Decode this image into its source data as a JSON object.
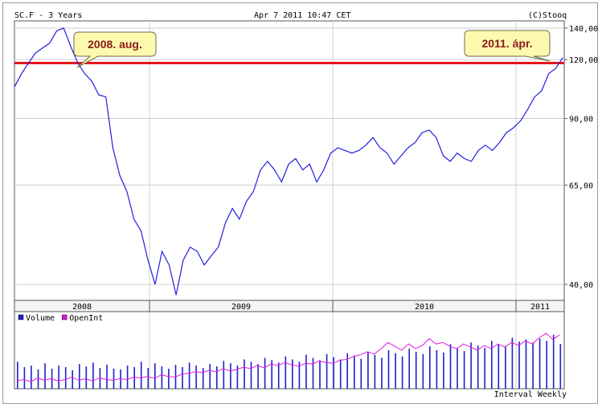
{
  "header": {
    "symbol": "SC.F - 3 Years",
    "timestamp": "Apr 7 2011 10:47 CET",
    "copyright": "(C)Stooq"
  },
  "footer": {
    "interval": "Interval Weekly"
  },
  "colors": {
    "price_line": "#1f1fe0",
    "reference_line": "#e8141c",
    "volume_bars": "#1f1fcc",
    "openint_line": "#e01be0",
    "callout_fill": "#fdfab0",
    "callout_text": "#8b1a1a",
    "grid": "#cfcfcf"
  },
  "callouts": [
    {
      "label": "2008. aug."
    },
    {
      "label": "2011. ápr."
    }
  ],
  "chart_data": [
    {
      "type": "line",
      "scale": "log",
      "y_ticks": [
        "140,00",
        "120,00",
        "90,00",
        "65,00",
        "40,00"
      ],
      "y_tick_values": [
        140,
        120,
        90,
        65,
        40
      ],
      "ylim": [
        37,
        145
      ],
      "x_ticks": [
        "2008",
        "2009",
        "2010",
        "2011"
      ],
      "xlim": [
        "2008-04-07",
        "2011-04-07"
      ],
      "grid": true,
      "reference_line": 118,
      "series": [
        {
          "points": [
            [
              "2008-04-07",
              105
            ],
            [
              "2008-04-21",
              112
            ],
            [
              "2008-05-05",
              118
            ],
            [
              "2008-05-19",
              124
            ],
            [
              "2008-06-02",
              127
            ],
            [
              "2008-06-16",
              130
            ],
            [
              "2008-06-30",
              138
            ],
            [
              "2008-07-14",
              140
            ],
            [
              "2008-07-28",
              128
            ],
            [
              "2008-08-11",
              118
            ],
            [
              "2008-08-25",
              112
            ],
            [
              "2008-09-08",
              108
            ],
            [
              "2008-09-22",
              101
            ],
            [
              "2008-10-06",
              100
            ],
            [
              "2008-10-20",
              78
            ],
            [
              "2008-11-03",
              68
            ],
            [
              "2008-11-17",
              63
            ],
            [
              "2008-12-01",
              55
            ],
            [
              "2008-12-15",
              52
            ],
            [
              "2008-12-29",
              45
            ],
            [
              "2009-01-12",
              40
            ],
            [
              "2009-01-26",
              47
            ],
            [
              "2009-02-09",
              44
            ],
            [
              "2009-02-23",
              38
            ],
            [
              "2009-03-09",
              45
            ],
            [
              "2009-03-23",
              48
            ],
            [
              "2009-04-06",
              47
            ],
            [
              "2009-04-20",
              44
            ],
            [
              "2009-05-04",
              46
            ],
            [
              "2009-05-18",
              48
            ],
            [
              "2009-06-01",
              54
            ],
            [
              "2009-06-15",
              58
            ],
            [
              "2009-06-29",
              55
            ],
            [
              "2009-07-13",
              60
            ],
            [
              "2009-07-27",
              63
            ],
            [
              "2009-08-10",
              70
            ],
            [
              "2009-08-24",
              73
            ],
            [
              "2009-09-07",
              70
            ],
            [
              "2009-09-21",
              66
            ],
            [
              "2009-10-05",
              72
            ],
            [
              "2009-10-19",
              74
            ],
            [
              "2009-11-02",
              70
            ],
            [
              "2009-11-16",
              72
            ],
            [
              "2009-11-30",
              66
            ],
            [
              "2009-12-14",
              70
            ],
            [
              "2009-12-28",
              76
            ],
            [
              "2010-01-11",
              78
            ],
            [
              "2010-01-25",
              77
            ],
            [
              "2010-02-08",
              76
            ],
            [
              "2010-02-22",
              77
            ],
            [
              "2010-03-08",
              79
            ],
            [
              "2010-03-22",
              82
            ],
            [
              "2010-04-05",
              78
            ],
            [
              "2010-04-19",
              76
            ],
            [
              "2010-05-03",
              72
            ],
            [
              "2010-05-17",
              75
            ],
            [
              "2010-05-31",
              78
            ],
            [
              "2010-06-14",
              80
            ],
            [
              "2010-06-28",
              84
            ],
            [
              "2010-07-12",
              85
            ],
            [
              "2010-07-26",
              82
            ],
            [
              "2010-08-09",
              75
            ],
            [
              "2010-08-23",
              73
            ],
            [
              "2010-09-06",
              76
            ],
            [
              "2010-09-20",
              74
            ],
            [
              "2010-10-04",
              73
            ],
            [
              "2010-10-18",
              77
            ],
            [
              "2010-11-01",
              79
            ],
            [
              "2010-11-15",
              77
            ],
            [
              "2010-11-29",
              80
            ],
            [
              "2010-12-13",
              84
            ],
            [
              "2010-12-27",
              86
            ],
            [
              "2011-01-10",
              89
            ],
            [
              "2011-01-24",
              94
            ],
            [
              "2011-02-07",
              100
            ],
            [
              "2011-02-21",
              103
            ],
            [
              "2011-03-07",
              112
            ],
            [
              "2011-03-21",
              115
            ],
            [
              "2011-04-04",
              121
            ]
          ]
        }
      ]
    },
    {
      "type": "bar",
      "legend": [
        "Volume",
        "OpenInt"
      ],
      "legend_placement": "top-left",
      "series": [
        {
          "name": "Volume",
          "values": [
            35,
            28,
            30,
            25,
            33,
            26,
            30,
            28,
            24,
            32,
            29,
            34,
            27,
            31,
            26,
            25,
            30,
            28,
            35,
            27,
            33,
            29,
            26,
            31,
            28,
            34,
            30,
            27,
            32,
            29,
            36,
            33,
            30,
            38,
            35,
            32,
            40,
            37,
            34,
            42,
            38,
            35,
            44,
            40,
            37,
            45,
            41,
            38,
            46,
            43,
            39,
            48,
            44,
            40,
            50,
            46,
            42,
            52,
            48,
            45,
            55,
            50,
            47,
            58,
            52,
            49,
            60,
            56,
            53,
            62,
            58,
            55,
            66,
            61,
            64,
            60,
            65,
            62,
            70,
            58
          ]
        },
        {
          "name": "OpenInt",
          "values": [
            10,
            12,
            9,
            14,
            11,
            13,
            10,
            12,
            15,
            11,
            13,
            10,
            14,
            12,
            11,
            13,
            12,
            15,
            14,
            16,
            13,
            18,
            16,
            15,
            19,
            20,
            22,
            21,
            24,
            22,
            26,
            23,
            25,
            28,
            26,
            30,
            27,
            32,
            30,
            34,
            31,
            29,
            33,
            32,
            36,
            34,
            33,
            37,
            38,
            42,
            44,
            48,
            45,
            52,
            60,
            55,
            50,
            58,
            52,
            56,
            65,
            58,
            60,
            55,
            52,
            58,
            54,
            50,
            56,
            52,
            58,
            54,
            60,
            56,
            62,
            58,
            66,
            72,
            64,
            70
          ]
        }
      ]
    }
  ]
}
